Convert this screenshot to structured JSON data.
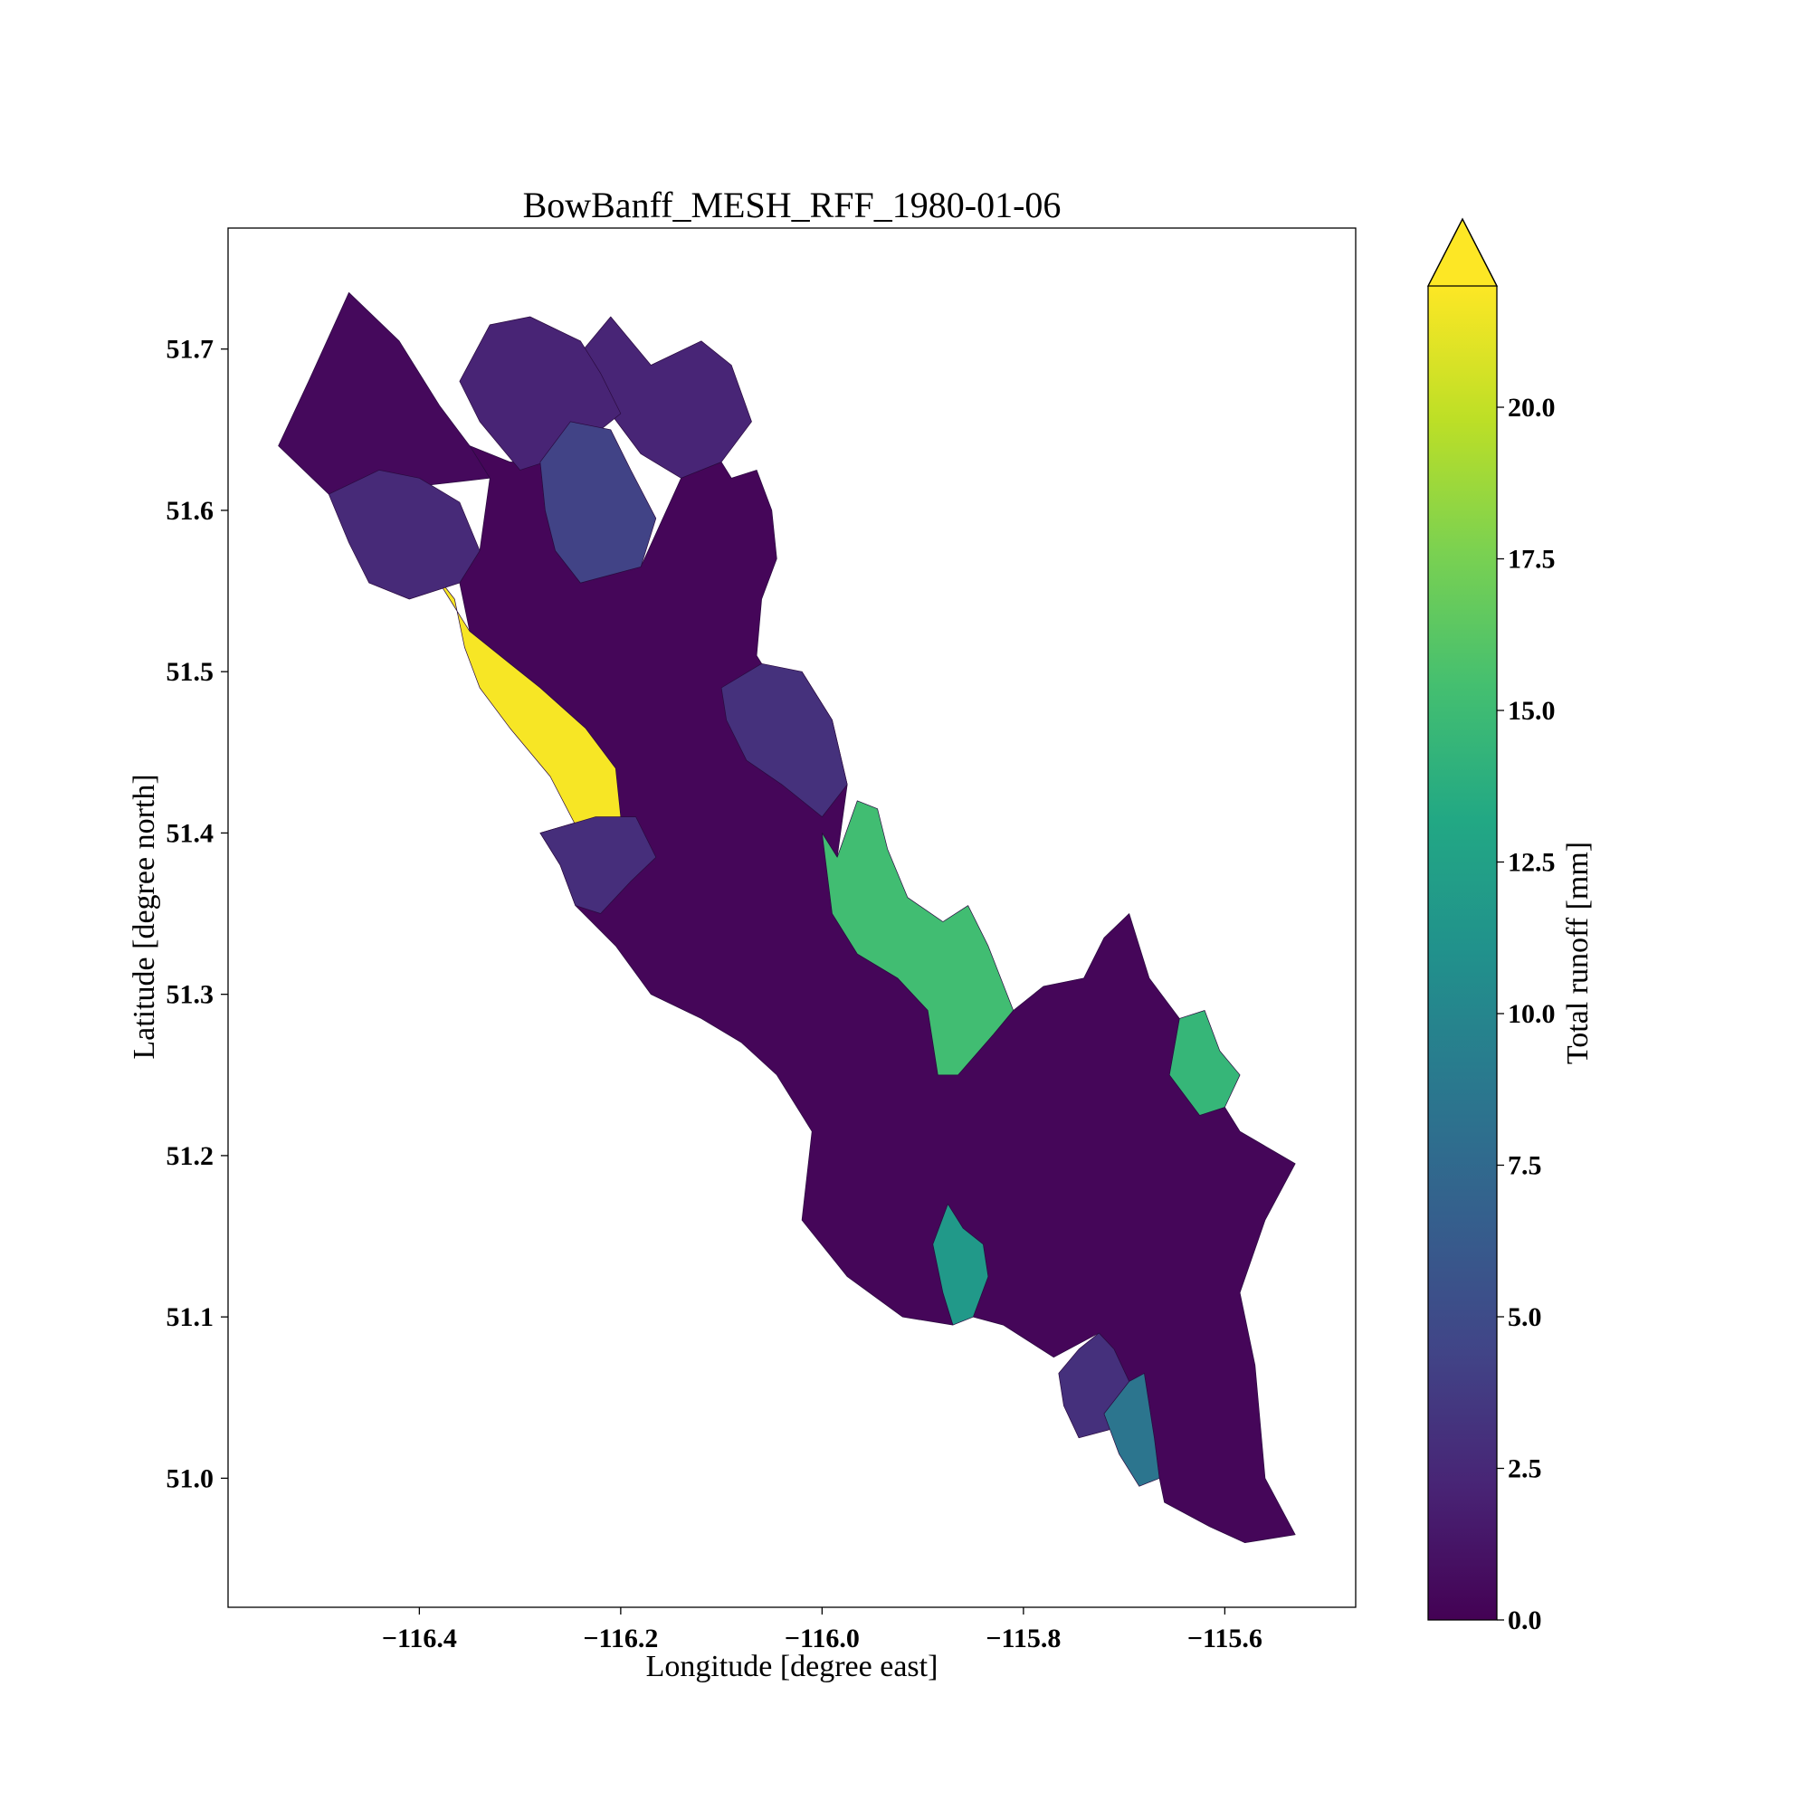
{
  "chart_data": {
    "type": "choropleth",
    "title": "BowBanff_MESH_RFF_1980-01-06",
    "xlabel": "Longitude [degree east]",
    "ylabel": "Latitude [degree north]",
    "xlim": [
      -116.59,
      -115.47
    ],
    "ylim": [
      50.92,
      51.775
    ],
    "x_ticks": [
      -116.4,
      -116.2,
      -116.0,
      -115.8,
      -115.6
    ],
    "x_tick_labels": [
      "−116.4",
      "−116.2",
      "−116.0",
      "−115.8",
      "−115.6"
    ],
    "y_ticks": [
      51.0,
      51.1,
      51.2,
      51.3,
      51.4,
      51.5,
      51.6,
      51.7
    ],
    "y_tick_labels": [
      "51.0",
      "51.1",
      "51.2",
      "51.3",
      "51.4",
      "51.5",
      "51.6",
      "51.7"
    ],
    "colorbar": {
      "label": "Total runoff [mm]",
      "colormap": "viridis",
      "vmin": 0.0,
      "vmax": 22.0,
      "extend": "max",
      "ticks": [
        0.0,
        2.5,
        5.0,
        7.5,
        10.0,
        12.5,
        15.0,
        17.5,
        20.0
      ],
      "tick_labels": [
        "0.0",
        "2.5",
        "5.0",
        "7.5",
        "10.0",
        "12.5",
        "15.0",
        "17.5",
        "20.0"
      ]
    },
    "subbasins": [
      {
        "value": 0.5,
        "outline": [
          [
            -116.54,
            51.64
          ],
          [
            -116.51,
            51.68
          ],
          [
            -116.47,
            51.735
          ],
          [
            -116.42,
            51.705
          ],
          [
            -116.38,
            51.665
          ],
          [
            -116.35,
            51.64
          ],
          [
            -116.33,
            51.62
          ],
          [
            -116.4,
            51.615
          ],
          [
            -116.46,
            51.605
          ],
          [
            -116.49,
            51.61
          ]
        ]
      },
      {
        "value": 2.2,
        "outline": [
          [
            -116.36,
            51.68
          ],
          [
            -116.33,
            51.715
          ],
          [
            -116.29,
            51.72
          ],
          [
            -116.24,
            51.705
          ],
          [
            -116.22,
            51.685
          ],
          [
            -116.2,
            51.66
          ],
          [
            -116.25,
            51.635
          ],
          [
            -116.3,
            51.625
          ],
          [
            -116.34,
            51.655
          ]
        ]
      },
      {
        "value": 2.3,
        "outline": [
          [
            -116.25,
            51.69
          ],
          [
            -116.21,
            51.72
          ],
          [
            -116.17,
            51.69
          ],
          [
            -116.12,
            51.705
          ],
          [
            -116.09,
            51.69
          ],
          [
            -116.07,
            51.655
          ],
          [
            -116.1,
            51.63
          ],
          [
            -116.14,
            51.62
          ],
          [
            -116.18,
            51.635
          ],
          [
            -116.21,
            51.66
          ],
          [
            -116.24,
            51.675
          ]
        ]
      },
      {
        "value": 2.6,
        "outline": [
          [
            -116.49,
            51.61
          ],
          [
            -116.44,
            51.625
          ],
          [
            -116.4,
            51.62
          ],
          [
            -116.36,
            51.605
          ],
          [
            -116.34,
            51.575
          ],
          [
            -116.36,
            51.555
          ],
          [
            -116.41,
            51.545
          ],
          [
            -116.45,
            51.555
          ],
          [
            -116.47,
            51.58
          ]
        ]
      },
      {
        "value": 4.3,
        "outline": [
          [
            -116.28,
            51.63
          ],
          [
            -116.25,
            51.655
          ],
          [
            -116.21,
            51.65
          ],
          [
            -116.19,
            51.625
          ],
          [
            -116.165,
            51.595
          ],
          [
            -116.18,
            51.565
          ],
          [
            -116.24,
            51.555
          ],
          [
            -116.265,
            51.575
          ],
          [
            -116.275,
            51.6
          ]
        ]
      },
      {
        "value": 21.8,
        "outline": [
          [
            -116.39,
            51.565
          ],
          [
            -116.365,
            51.545
          ],
          [
            -116.355,
            51.515
          ],
          [
            -116.34,
            51.49
          ],
          [
            -116.31,
            51.465
          ],
          [
            -116.27,
            51.435
          ],
          [
            -116.245,
            51.405
          ],
          [
            -116.235,
            51.385
          ],
          [
            -116.2,
            51.41
          ],
          [
            -116.205,
            51.44
          ],
          [
            -116.235,
            51.465
          ],
          [
            -116.28,
            51.49
          ],
          [
            -116.31,
            51.505
          ],
          [
            -116.35,
            51.525
          ]
        ]
      },
      {
        "value": 2.9,
        "outline": [
          [
            -116.28,
            51.4
          ],
          [
            -116.26,
            51.38
          ],
          [
            -116.245,
            51.355
          ],
          [
            -116.22,
            51.35
          ],
          [
            -116.19,
            51.37
          ],
          [
            -116.165,
            51.385
          ],
          [
            -116.185,
            51.41
          ],
          [
            -116.225,
            51.41
          ]
        ]
      },
      {
        "value": 3.1,
        "outline": [
          [
            -116.1,
            51.49
          ],
          [
            -116.06,
            51.505
          ],
          [
            -116.02,
            51.5
          ],
          [
            -115.99,
            51.47
          ],
          [
            -115.975,
            51.43
          ],
          [
            -116.0,
            51.41
          ],
          [
            -116.04,
            51.43
          ],
          [
            -116.075,
            51.445
          ],
          [
            -116.095,
            51.47
          ]
        ]
      },
      {
        "value": 15.2,
        "outline": [
          [
            -116.0,
            51.4
          ],
          [
            -115.985,
            51.385
          ],
          [
            -115.965,
            51.42
          ],
          [
            -115.945,
            51.415
          ],
          [
            -115.935,
            51.39
          ],
          [
            -115.915,
            51.36
          ],
          [
            -115.88,
            51.345
          ],
          [
            -115.855,
            51.355
          ],
          [
            -115.835,
            51.33
          ],
          [
            -115.81,
            51.29
          ],
          [
            -115.83,
            51.275
          ],
          [
            -115.865,
            51.25
          ],
          [
            -115.885,
            51.25
          ],
          [
            -115.895,
            51.29
          ],
          [
            -115.925,
            51.31
          ],
          [
            -115.965,
            51.325
          ],
          [
            -115.99,
            51.35
          ]
        ]
      },
      {
        "value": 14.5,
        "outline": [
          [
            -115.655,
            51.25
          ],
          [
            -115.645,
            51.285
          ],
          [
            -115.62,
            51.29
          ],
          [
            -115.605,
            51.265
          ],
          [
            -115.585,
            51.25
          ],
          [
            -115.6,
            51.23
          ],
          [
            -115.625,
            51.225
          ]
        ]
      },
      {
        "value": 11.8,
        "outline": [
          [
            -115.875,
            51.17
          ],
          [
            -115.86,
            51.155
          ],
          [
            -115.84,
            51.145
          ],
          [
            -115.835,
            51.125
          ],
          [
            -115.85,
            51.1
          ],
          [
            -115.87,
            51.095
          ],
          [
            -115.88,
            51.115
          ],
          [
            -115.89,
            51.145
          ]
        ]
      },
      {
        "value": 3.0,
        "outline": [
          [
            -115.725,
            51.09
          ],
          [
            -115.71,
            51.08
          ],
          [
            -115.695,
            51.06
          ],
          [
            -115.715,
            51.03
          ],
          [
            -115.745,
            51.025
          ],
          [
            -115.76,
            51.045
          ],
          [
            -115.765,
            51.065
          ],
          [
            -115.745,
            51.08
          ]
        ]
      },
      {
        "value": 8.5,
        "outline": [
          [
            -115.695,
            51.06
          ],
          [
            -115.68,
            51.065
          ],
          [
            -115.67,
            51.025
          ],
          [
            -115.665,
            51.0
          ],
          [
            -115.685,
            50.995
          ],
          [
            -115.705,
            51.015
          ],
          [
            -115.72,
            51.04
          ]
        ]
      },
      {
        "value": 0.3,
        "outline": [
          [
            -116.35,
            51.64
          ],
          [
            -116.31,
            51.63
          ],
          [
            -116.28,
            51.63
          ],
          [
            -116.275,
            51.6
          ],
          [
            -116.265,
            51.575
          ],
          [
            -116.24,
            51.555
          ],
          [
            -116.18,
            51.565
          ],
          [
            -116.14,
            51.62
          ],
          [
            -116.1,
            51.63
          ],
          [
            -116.09,
            51.62
          ],
          [
            -116.065,
            51.625
          ],
          [
            -116.05,
            51.6
          ],
          [
            -116.045,
            51.57
          ],
          [
            -116.06,
            51.545
          ],
          [
            -116.065,
            51.51
          ],
          [
            -116.05,
            51.495
          ],
          [
            -116.02,
            51.5
          ],
          [
            -115.99,
            51.47
          ],
          [
            -115.975,
            51.43
          ],
          [
            -115.985,
            51.385
          ],
          [
            -116.0,
            51.4
          ],
          [
            -115.99,
            51.35
          ],
          [
            -115.965,
            51.325
          ],
          [
            -115.925,
            51.31
          ],
          [
            -115.895,
            51.29
          ],
          [
            -115.885,
            51.25
          ],
          [
            -115.865,
            51.25
          ],
          [
            -115.83,
            51.275
          ],
          [
            -115.81,
            51.29
          ],
          [
            -115.78,
            51.305
          ],
          [
            -115.74,
            51.31
          ],
          [
            -115.72,
            51.335
          ],
          [
            -115.695,
            51.35
          ],
          [
            -115.675,
            51.31
          ],
          [
            -115.645,
            51.285
          ],
          [
            -115.655,
            51.25
          ],
          [
            -115.625,
            51.225
          ],
          [
            -115.6,
            51.23
          ],
          [
            -115.585,
            51.215
          ],
          [
            -115.53,
            51.195
          ],
          [
            -115.56,
            51.16
          ],
          [
            -115.585,
            51.115
          ],
          [
            -115.57,
            51.07
          ],
          [
            -115.56,
            51.0
          ],
          [
            -115.53,
            50.965
          ],
          [
            -115.58,
            50.96
          ],
          [
            -115.615,
            50.97
          ],
          [
            -115.66,
            50.985
          ],
          [
            -115.665,
            51.0
          ],
          [
            -115.67,
            51.025
          ],
          [
            -115.68,
            51.065
          ],
          [
            -115.695,
            51.06
          ],
          [
            -115.71,
            51.08
          ],
          [
            -115.725,
            51.09
          ],
          [
            -115.77,
            51.075
          ],
          [
            -115.82,
            51.095
          ],
          [
            -115.85,
            51.1
          ],
          [
            -115.835,
            51.125
          ],
          [
            -115.84,
            51.145
          ],
          [
            -115.86,
            51.155
          ],
          [
            -115.875,
            51.17
          ],
          [
            -115.89,
            51.145
          ],
          [
            -115.88,
            51.115
          ],
          [
            -115.87,
            51.095
          ],
          [
            -115.92,
            51.1
          ],
          [
            -115.975,
            51.125
          ],
          [
            -116.02,
            51.16
          ],
          [
            -116.01,
            51.215
          ],
          [
            -116.045,
            51.25
          ],
          [
            -116.08,
            51.27
          ],
          [
            -116.12,
            51.285
          ],
          [
            -116.17,
            51.3
          ],
          [
            -116.205,
            51.33
          ],
          [
            -116.245,
            51.355
          ],
          [
            -116.26,
            51.38
          ],
          [
            -116.28,
            51.4
          ],
          [
            -116.225,
            51.41
          ],
          [
            -116.205,
            51.44
          ],
          [
            -116.235,
            51.465
          ],
          [
            -116.28,
            51.49
          ],
          [
            -116.31,
            51.505
          ],
          [
            -116.35,
            51.525
          ],
          [
            -116.36,
            51.555
          ],
          [
            -116.34,
            51.575
          ],
          [
            -116.33,
            51.62
          ]
        ]
      }
    ]
  }
}
